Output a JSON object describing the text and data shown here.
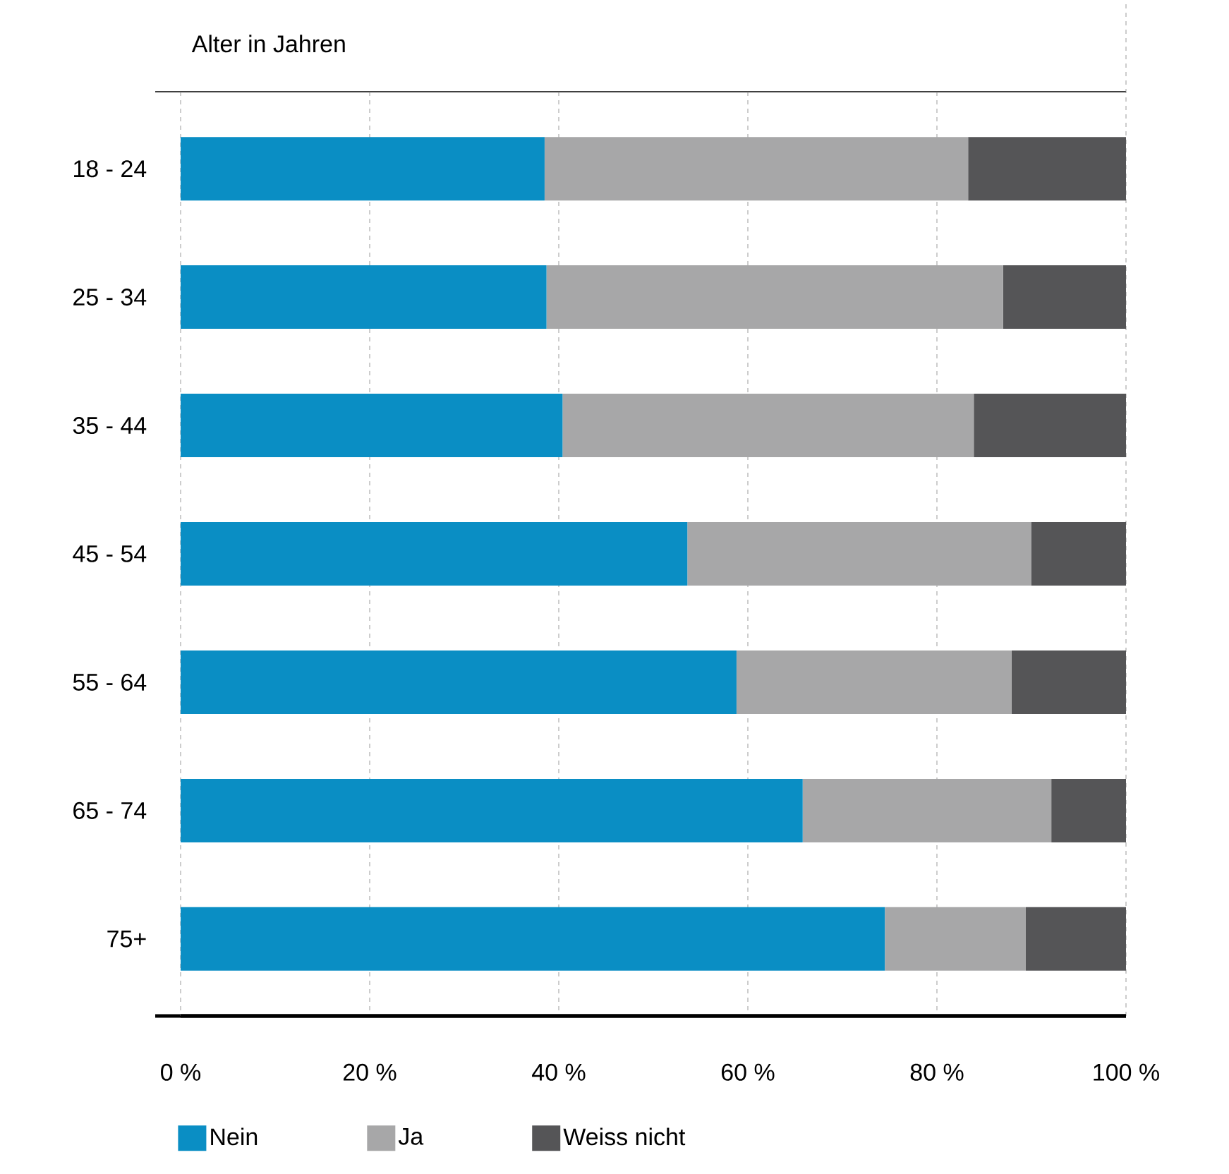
{
  "chart_data": {
    "type": "bar",
    "orientation": "horizontal",
    "stacked": true,
    "ylabel": "Alter in Jahren",
    "categories": [
      "18 - 24",
      "25 - 34",
      "35 - 44",
      "45 - 54",
      "55 - 64",
      "65 - 74",
      "75+"
    ],
    "series": [
      {
        "name": "Nein",
        "color": "#0a8ec4",
        "values": [
          38.5,
          38.7,
          40.4,
          53.6,
          58.8,
          65.8,
          74.5
        ]
      },
      {
        "name": "Ja",
        "color": "#a7a7a8",
        "values": [
          44.8,
          48.3,
          43.5,
          36.4,
          29.1,
          26.3,
          14.9
        ]
      },
      {
        "name": "Weiss nicht",
        "color": "#555557",
        "values": [
          16.7,
          13.0,
          16.1,
          10.0,
          12.1,
          7.9,
          10.6
        ]
      }
    ],
    "xlim": [
      0,
      100
    ],
    "xticks": [
      {
        "value": 0,
        "label": "0 %"
      },
      {
        "value": 20,
        "label": "20 %"
      },
      {
        "value": 40,
        "label": "40 %"
      },
      {
        "value": 60,
        "label": "60 %"
      },
      {
        "value": 80,
        "label": "80 %"
      },
      {
        "value": 100,
        "label": "100 %"
      }
    ],
    "grid": "x",
    "legend": "bottom"
  }
}
